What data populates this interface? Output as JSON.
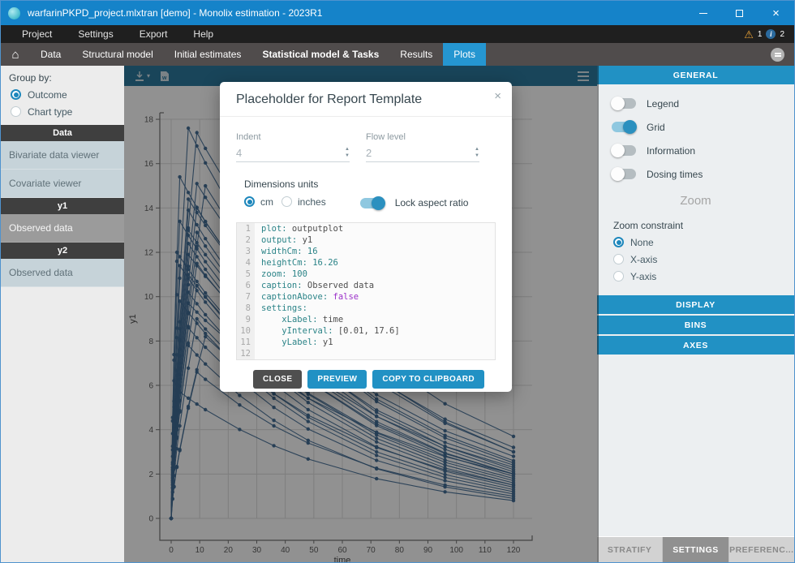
{
  "window": {
    "title": "warfarinPKPD_project.mlxtran [demo]  - Monolix estimation - 2023R1"
  },
  "menubar": {
    "items": [
      "Project",
      "Settings",
      "Export",
      "Help"
    ],
    "warning_badge": "1",
    "info_badge": "2"
  },
  "tabbar": {
    "tabs": [
      {
        "label": "Data",
        "active": false,
        "bold": false
      },
      {
        "label": "Structural model",
        "active": false,
        "bold": false
      },
      {
        "label": "Initial estimates",
        "active": false,
        "bold": false
      },
      {
        "label": "Statistical model & Tasks",
        "active": false,
        "bold": true
      },
      {
        "label": "Results",
        "active": false,
        "bold": false
      },
      {
        "label": "Plots",
        "active": true,
        "bold": false
      }
    ]
  },
  "sidebar": {
    "group_by_label": "Group by:",
    "group_options": [
      {
        "label": "Outcome",
        "selected": true
      },
      {
        "label": "Chart type",
        "selected": false
      }
    ],
    "sections": [
      {
        "header": "Data",
        "items": [
          {
            "label": "Bivariate data viewer",
            "active": false
          },
          {
            "label": "Covariate viewer",
            "active": false
          }
        ]
      },
      {
        "header": "y1",
        "items": [
          {
            "label": "Observed data",
            "active": true
          }
        ]
      },
      {
        "header": "y2",
        "items": [
          {
            "label": "Observed data",
            "active": false
          }
        ]
      }
    ]
  },
  "plot": {
    "xlabel": "time",
    "ylabel": "y1",
    "x_ticks": [
      0,
      10,
      20,
      30,
      40,
      50,
      60,
      70,
      80,
      90,
      100,
      110,
      120
    ],
    "y_ticks": [
      0,
      2,
      4,
      6,
      8,
      10,
      12,
      14,
      16,
      18
    ],
    "x_range": [
      0,
      120
    ],
    "y_range": [
      0,
      18
    ],
    "grid": true,
    "line_color": "#3a6690",
    "sample_times": [
      0,
      0.5,
      1,
      2,
      3,
      6,
      9,
      12,
      24,
      36,
      48,
      72,
      96,
      120
    ],
    "subjects": [
      [
        17.6,
        6,
        3.0
      ],
      [
        17.4,
        9,
        3.7
      ],
      [
        15.4,
        3,
        2.5
      ],
      [
        15.1,
        9,
        3.2
      ],
      [
        15.0,
        12,
        3.0
      ],
      [
        14.4,
        6,
        2.8
      ],
      [
        14.0,
        9,
        2.6
      ],
      [
        13.9,
        6,
        2.2
      ],
      [
        13.4,
        3,
        2.0
      ],
      [
        13.0,
        6,
        2.4
      ],
      [
        12.9,
        9,
        2.1
      ],
      [
        12.4,
        6,
        1.9
      ],
      [
        12.0,
        2,
        1.7
      ],
      [
        11.9,
        6,
        2.3
      ],
      [
        11.5,
        9,
        2.0
      ],
      [
        11.4,
        3,
        1.5
      ],
      [
        11.0,
        6,
        1.8
      ],
      [
        10.5,
        9,
        1.6
      ],
      [
        10.2,
        6,
        1.4
      ],
      [
        9.8,
        3,
        1.2
      ],
      [
        9.7,
        6,
        2.0
      ],
      [
        9.0,
        9,
        1.3
      ],
      [
        8.6,
        6,
        1.1
      ],
      [
        8.2,
        12,
        1.5
      ],
      [
        7.8,
        6,
        0.9
      ],
      [
        6.6,
        9,
        1.0
      ],
      [
        5.8,
        2,
        0.8
      ]
    ],
    "toolbar_icons": [
      "export-icon",
      "report-icon",
      "menu-icon"
    ]
  },
  "panel": {
    "header": "GENERAL",
    "toggles": [
      {
        "label": "Legend",
        "on": false
      },
      {
        "label": "Grid",
        "on": true
      },
      {
        "label": "Information",
        "on": false
      },
      {
        "label": "Dosing times",
        "on": false
      }
    ],
    "zoom_title": "Zoom",
    "zoom_constraint_label": "Zoom constraint",
    "zoom_options": [
      {
        "label": "None",
        "selected": true
      },
      {
        "label": "X-axis",
        "selected": false
      },
      {
        "label": "Y-axis",
        "selected": false
      }
    ],
    "sections": [
      "DISPLAY",
      "BINS",
      "AXES"
    ],
    "bottom_tabs": [
      {
        "label": "STRATIFY",
        "active": false
      },
      {
        "label": "SETTINGS",
        "active": true
      },
      {
        "label": "PREFERENC...",
        "active": false
      }
    ]
  },
  "modal": {
    "title": "Placeholder for Report Template",
    "close_icon": "×",
    "fields": [
      {
        "label": "Indent",
        "value": "4"
      },
      {
        "label": "Flow level",
        "value": "2"
      }
    ],
    "units_label": "Dimensions units",
    "units_options": [
      {
        "label": "cm",
        "selected": true
      },
      {
        "label": "inches",
        "selected": false
      }
    ],
    "lock_label": "Lock aspect ratio",
    "lock_on": true,
    "code": {
      "lines": [
        {
          "n": "1",
          "segs": [
            [
              "k",
              "plot:"
            ],
            [
              "v",
              " outputplot"
            ]
          ]
        },
        {
          "n": "2",
          "segs": [
            [
              "k",
              "output:"
            ],
            [
              "v",
              " y1"
            ]
          ]
        },
        {
          "n": "3",
          "segs": [
            [
              "k",
              "widthCm:"
            ],
            [
              "num",
              " 16"
            ]
          ]
        },
        {
          "n": "4",
          "segs": [
            [
              "k",
              "heightCm:"
            ],
            [
              "num",
              " 16.26"
            ]
          ]
        },
        {
          "n": "5",
          "segs": [
            [
              "k",
              "zoom:"
            ],
            [
              "num",
              " 100"
            ]
          ]
        },
        {
          "n": "6",
          "segs": [
            [
              "k",
              "caption:"
            ],
            [
              "v",
              " Observed data"
            ]
          ]
        },
        {
          "n": "7",
          "segs": [
            [
              "k",
              "captionAbove:"
            ],
            [
              "bool",
              " false"
            ]
          ]
        },
        {
          "n": "8",
          "segs": [
            [
              "k",
              "settings:"
            ]
          ]
        },
        {
          "n": "9",
          "segs": [
            [
              "v",
              "    "
            ],
            [
              "k",
              "xLabel:"
            ],
            [
              "v",
              " time"
            ]
          ]
        },
        {
          "n": "10",
          "segs": [
            [
              "v",
              "    "
            ],
            [
              "k",
              "yInterval:"
            ],
            [
              "v",
              " [0.01, 17.6]"
            ]
          ]
        },
        {
          "n": "11",
          "segs": [
            [
              "v",
              "    "
            ],
            [
              "k",
              "yLabel:"
            ],
            [
              "v",
              " y1"
            ]
          ]
        },
        {
          "n": "12",
          "segs": []
        }
      ]
    },
    "buttons": [
      {
        "label": "CLOSE",
        "style": "dark"
      },
      {
        "label": "PREVIEW",
        "style": "blue"
      },
      {
        "label": "COPY TO CLIPBOARD",
        "style": "blue"
      }
    ]
  },
  "colors": {
    "titlebar": "#1583c9",
    "tab_active": "#2596d1",
    "panel_header": "#2191c4",
    "plot_toolbar": "#26759b",
    "series_line": "#3a6690",
    "warning": "#eba336"
  }
}
